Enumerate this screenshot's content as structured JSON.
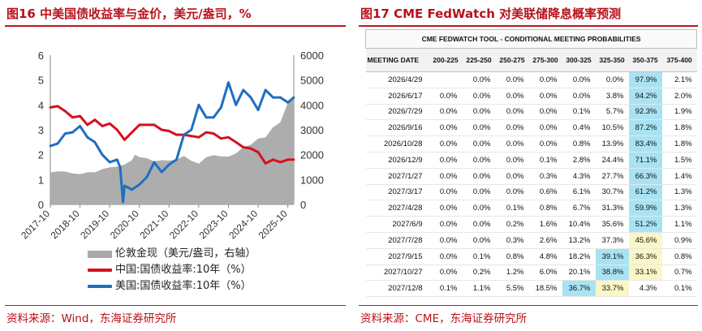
{
  "left": {
    "title": "图16  中美国债收益率与金价，美元/盎司，%",
    "source": "资料来源：Wind，东海证券研究所",
    "legend": [
      {
        "label": "伦敦金现（美元/盎司，右轴）",
        "color": "#a9a9a9",
        "kind": "bar"
      },
      {
        "label": "中国:国债收益率:10年（%）",
        "color": "#d6111e",
        "kind": "line"
      },
      {
        "label": "美国:国债收益率:10年（%）",
        "color": "#1f6fc0",
        "kind": "line"
      }
    ]
  },
  "chart_data": {
    "type": "line",
    "x_ticks": [
      "2017-10",
      "2018-10",
      "2019-10",
      "2020-10",
      "2021-10",
      "2022-10",
      "2023-10",
      "2024-10",
      "2025-10"
    ],
    "y_left": {
      "ticks": [
        0,
        1,
        2,
        3,
        4,
        5,
        6
      ],
      "ylim": [
        0,
        6
      ]
    },
    "y_right": {
      "ticks": [
        0,
        1000,
        2000,
        3000,
        4000,
        5000,
        6000
      ],
      "ylim": [
        0,
        6000
      ]
    },
    "series": [
      {
        "name": "伦敦金现（美元/盎司，右轴）",
        "axis": "right",
        "kind": "area",
        "color": "#a9a9a9",
        "x": [
          2017.75,
          2018.0,
          2018.25,
          2018.5,
          2018.75,
          2019.0,
          2019.25,
          2019.5,
          2019.75,
          2020.0,
          2020.25,
          2020.5,
          2020.6,
          2020.75,
          2021.0,
          2021.25,
          2021.5,
          2021.75,
          2022.0,
          2022.25,
          2022.5,
          2022.75,
          2023.0,
          2023.25,
          2023.5,
          2023.75,
          2024.0,
          2024.25,
          2024.5,
          2024.75,
          2025.0,
          2025.25,
          2025.5,
          2025.75,
          2025.85,
          2025.95
        ],
        "y": [
          1280,
          1330,
          1320,
          1250,
          1220,
          1290,
          1290,
          1420,
          1490,
          1520,
          1600,
          1780,
          2000,
          1900,
          1860,
          1730,
          1780,
          1760,
          1800,
          1950,
          1750,
          1640,
          1900,
          1980,
          1930,
          1920,
          2050,
          2300,
          2400,
          2650,
          2700,
          3100,
          3300,
          4100,
          4200,
          4350
        ]
      },
      {
        "name": "中国:国债收益率:10年（%）",
        "axis": "left",
        "color": "#d6111e",
        "x": [
          2017.75,
          2018.0,
          2018.25,
          2018.5,
          2018.75,
          2019.0,
          2019.25,
          2019.5,
          2019.75,
          2020.0,
          2020.25,
          2020.5,
          2020.75,
          2021.0,
          2021.25,
          2021.5,
          2021.75,
          2022.0,
          2022.25,
          2022.5,
          2022.75,
          2023.0,
          2023.25,
          2023.5,
          2023.75,
          2024.0,
          2024.25,
          2024.5,
          2024.75,
          2025.0,
          2025.25,
          2025.5,
          2025.75,
          2025.95
        ],
        "y": [
          3.9,
          3.95,
          3.75,
          3.5,
          3.55,
          3.2,
          3.4,
          3.15,
          3.25,
          3.0,
          2.6,
          2.9,
          3.2,
          3.2,
          3.2,
          3.0,
          2.95,
          2.8,
          2.8,
          2.75,
          2.7,
          2.9,
          2.85,
          2.65,
          2.7,
          2.5,
          2.3,
          2.25,
          2.1,
          1.65,
          1.8,
          1.7,
          1.8,
          1.8
        ]
      },
      {
        "name": "美国:国债收益率:10年（%）",
        "axis": "left",
        "color": "#1f6fc0",
        "x": [
          2017.75,
          2018.0,
          2018.25,
          2018.5,
          2018.75,
          2019.0,
          2019.25,
          2019.5,
          2019.75,
          2020.0,
          2020.1,
          2020.2,
          2020.25,
          2020.5,
          2020.75,
          2021.0,
          2021.25,
          2021.5,
          2021.75,
          2022.0,
          2022.25,
          2022.5,
          2022.75,
          2023.0,
          2023.25,
          2023.5,
          2023.75,
          2024.0,
          2024.25,
          2024.5,
          2024.75,
          2025.0,
          2025.25,
          2025.5,
          2025.75,
          2025.95
        ],
        "y": [
          2.35,
          2.45,
          2.85,
          2.9,
          3.15,
          2.7,
          2.5,
          2.0,
          1.7,
          1.8,
          1.5,
          0.1,
          0.75,
          0.6,
          0.8,
          1.1,
          1.7,
          1.3,
          1.6,
          1.8,
          2.8,
          3.0,
          4.0,
          3.5,
          3.5,
          3.9,
          4.9,
          4.0,
          4.6,
          4.3,
          3.8,
          4.6,
          4.3,
          4.3,
          4.1,
          4.3
        ]
      }
    ]
  },
  "right": {
    "title": "图17  CME FedWatch 对美联储降息概率预测",
    "source": "资料来源：CME，东海证券研究所",
    "tool_title": "CME FEDWATCH TOOL - CONDITIONAL MEETING PROBABILITIES",
    "columns": [
      "MEETING DATE",
      "200-225",
      "225-250",
      "250-275",
      "275-300",
      "300-325",
      "325-350",
      "350-375",
      "375-400"
    ],
    "rows": [
      {
        "date": "2026/4/29",
        "cells": [
          "",
          "0.0%",
          "0.0%",
          "0.0%",
          "0.0%",
          "0.0%",
          "97.9%",
          "2.1%"
        ],
        "hl": {
          "6": "blue"
        }
      },
      {
        "date": "2026/6/17",
        "cells": [
          "0.0%",
          "0.0%",
          "0.0%",
          "0.0%",
          "0.0%",
          "3.8%",
          "94.2%",
          "2.0%"
        ],
        "hl": {
          "6": "blue"
        }
      },
      {
        "date": "2026/7/29",
        "cells": [
          "0.0%",
          "0.0%",
          "0.0%",
          "0.0%",
          "0.1%",
          "5.7%",
          "92.3%",
          "1.9%"
        ],
        "hl": {
          "6": "blue"
        }
      },
      {
        "date": "2026/9/16",
        "cells": [
          "0.0%",
          "0.0%",
          "0.0%",
          "0.0%",
          "0.4%",
          "10.5%",
          "87.2%",
          "1.8%"
        ],
        "hl": {
          "6": "blue"
        }
      },
      {
        "date": "2026/10/28",
        "cells": [
          "0.0%",
          "0.0%",
          "0.0%",
          "0.0%",
          "0.8%",
          "13.9%",
          "83.4%",
          "1.8%"
        ],
        "hl": {
          "6": "blue"
        }
      },
      {
        "date": "2026/12/9",
        "cells": [
          "0.0%",
          "0.0%",
          "0.0%",
          "0.1%",
          "2.8%",
          "24.4%",
          "71.1%",
          "1.5%"
        ],
        "hl": {
          "6": "blue"
        }
      },
      {
        "date": "2027/1/27",
        "cells": [
          "0.0%",
          "0.0%",
          "0.0%",
          "0.3%",
          "4.3%",
          "27.7%",
          "66.3%",
          "1.4%"
        ],
        "hl": {
          "6": "blue"
        }
      },
      {
        "date": "2027/3/17",
        "cells": [
          "0.0%",
          "0.0%",
          "0.0%",
          "0.6%",
          "6.1%",
          "30.7%",
          "61.2%",
          "1.3%"
        ],
        "hl": {
          "6": "blue"
        }
      },
      {
        "date": "2027/4/28",
        "cells": [
          "0.0%",
          "0.0%",
          "0.1%",
          "0.8%",
          "6.7%",
          "31.3%",
          "59.9%",
          "1.3%"
        ],
        "hl": {
          "6": "blue"
        }
      },
      {
        "date": "2027/6/9",
        "cells": [
          "0.0%",
          "0.0%",
          "0.2%",
          "1.6%",
          "10.4%",
          "35.6%",
          "51.2%",
          "1.1%"
        ],
        "hl": {
          "6": "blue"
        }
      },
      {
        "date": "2027/7/28",
        "cells": [
          "0.0%",
          "0.0%",
          "0.3%",
          "2.6%",
          "13.2%",
          "37.3%",
          "45.6%",
          "0.9%"
        ],
        "hl": {
          "6": "yellow"
        }
      },
      {
        "date": "2027/9/15",
        "cells": [
          "0.0%",
          "0.1%",
          "0.8%",
          "4.8%",
          "18.2%",
          "39.1%",
          "36.3%",
          "0.8%"
        ],
        "hl": {
          "5": "blue",
          "6": "yellow"
        }
      },
      {
        "date": "2027/10/27",
        "cells": [
          "0.0%",
          "0.2%",
          "1.2%",
          "6.0%",
          "20.1%",
          "38.8%",
          "33.1%",
          "0.7%"
        ],
        "hl": {
          "5": "blue",
          "6": "yellow"
        }
      },
      {
        "date": "2027/12/8",
        "cells": [
          "0.1%",
          "1.1%",
          "5.5%",
          "18.5%",
          "36.7%",
          "33.7%",
          "4.3%",
          "0.1%"
        ],
        "hl": {
          "4": "blue",
          "5": "yellow"
        }
      }
    ]
  }
}
